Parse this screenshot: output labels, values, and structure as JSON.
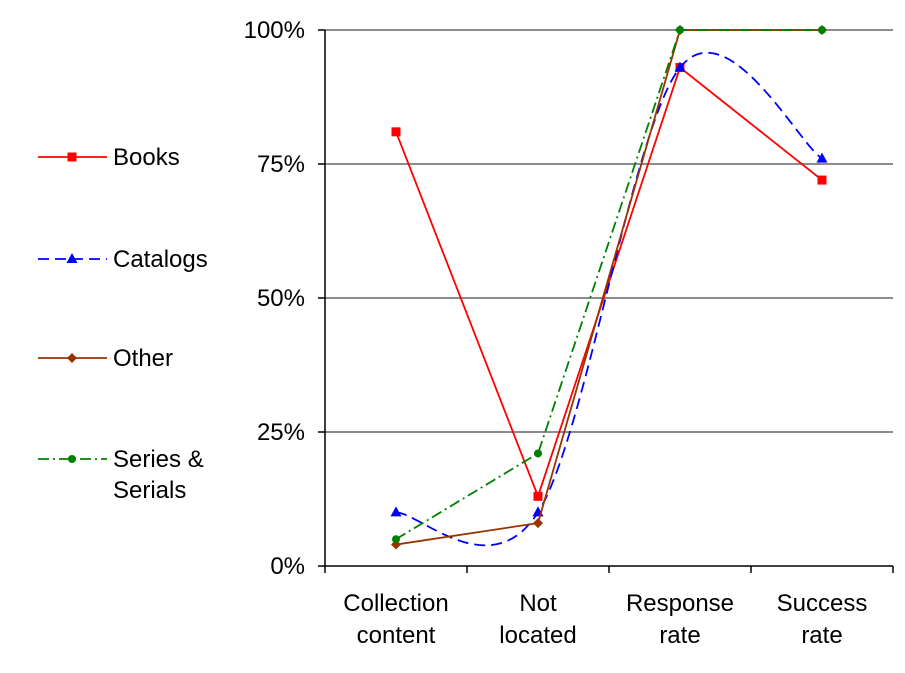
{
  "chart_data": {
    "type": "line",
    "categories": [
      [
        "Collection",
        "content"
      ],
      [
        "Not",
        "located"
      ],
      [
        "Response",
        "rate"
      ],
      [
        "Success",
        "rate"
      ]
    ],
    "ylim": [
      0,
      100
    ],
    "y_ticks": [
      0,
      25,
      50,
      75,
      100
    ],
    "y_tick_labels": [
      "0%",
      "25%",
      "50%",
      "75%",
      "100%"
    ],
    "grid": "horizontal",
    "legend_position": "left",
    "series": [
      {
        "name": "Books",
        "label_lines": [
          "Books"
        ],
        "values": [
          81,
          13,
          93,
          72
        ],
        "color": "#ff0000",
        "marker": "square",
        "line_style": "solid",
        "smooth": false
      },
      {
        "name": "Catalogs",
        "label_lines": [
          "Catalogs"
        ],
        "values": [
          10,
          10,
          93,
          76
        ],
        "color": "#0000ff",
        "marker": "triangle",
        "line_style": "dashed",
        "smooth": true
      },
      {
        "name": "Other",
        "label_lines": [
          "Other"
        ],
        "values": [
          4,
          8,
          100,
          100
        ],
        "color": "#993300",
        "marker": "diamond",
        "line_style": "solid",
        "smooth": false
      },
      {
        "name": "Series & Serials",
        "label_lines": [
          "Series &",
          "Serials"
        ],
        "values": [
          5,
          21,
          100,
          100
        ],
        "color": "#008000",
        "marker": "circle",
        "line_style": "dashdot",
        "smooth": false
      }
    ]
  }
}
